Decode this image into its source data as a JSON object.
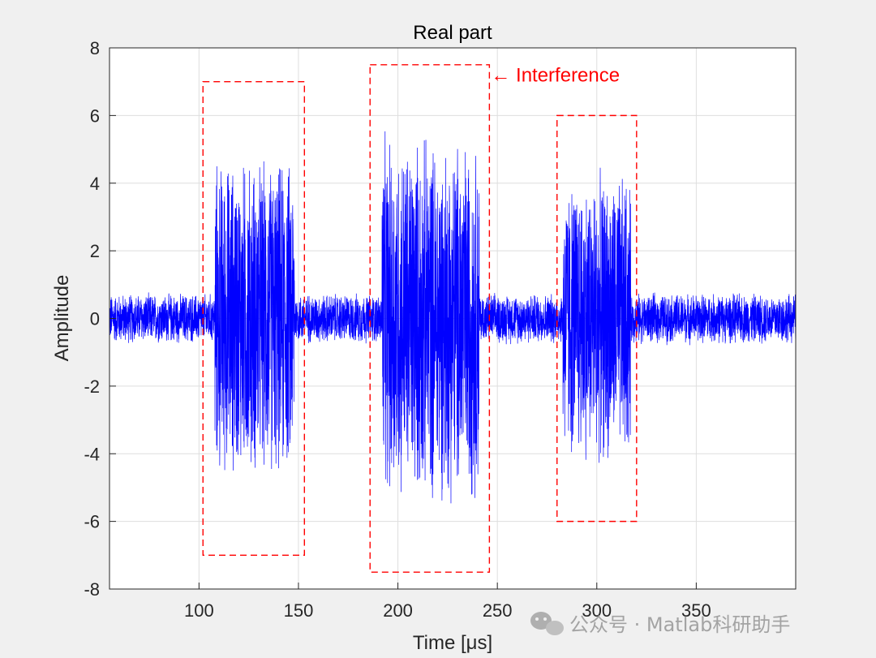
{
  "chart_data": {
    "type": "line",
    "title": "Real part",
    "xlabel": "Time [μs]",
    "ylabel": "Amplitude",
    "xlim": [
      55,
      400
    ],
    "ylim": [
      -8,
      8
    ],
    "xticks": [
      100,
      150,
      200,
      250,
      300,
      350
    ],
    "yticks": [
      8,
      6,
      4,
      2,
      0,
      -2,
      -4,
      -6,
      -8
    ],
    "grid": true,
    "series": [
      {
        "color": "#0000ff",
        "description_segments": [
          {
            "x_start": 55,
            "x_end": 108,
            "amplitude": 0.8
          },
          {
            "x_start": 108,
            "x_end": 148,
            "amplitude": 5.0
          },
          {
            "x_start": 148,
            "x_end": 192,
            "amplitude": 0.8
          },
          {
            "x_start": 192,
            "x_end": 241,
            "amplitude": 5.7
          },
          {
            "x_start": 241,
            "x_end": 283,
            "amplitude": 0.8
          },
          {
            "x_start": 283,
            "x_end": 317,
            "amplitude": 4.5
          },
          {
            "x_start": 317,
            "x_end": 400,
            "amplitude": 0.8
          }
        ]
      }
    ],
    "boxes": [
      {
        "x0": 102,
        "x1": 153,
        "y0": -7,
        "y1": 7
      },
      {
        "x0": 186,
        "x1": 246,
        "y0": -7.5,
        "y1": 7.5
      },
      {
        "x0": 280,
        "x1": 320,
        "y0": -6,
        "y1": 6
      }
    ],
    "annotations": [
      {
        "text": "← Interference",
        "x": 246,
        "y": 7.2,
        "color": "#ff0000"
      }
    ]
  },
  "watermark": {
    "text": "公众号 · Matlab科研助手"
  }
}
